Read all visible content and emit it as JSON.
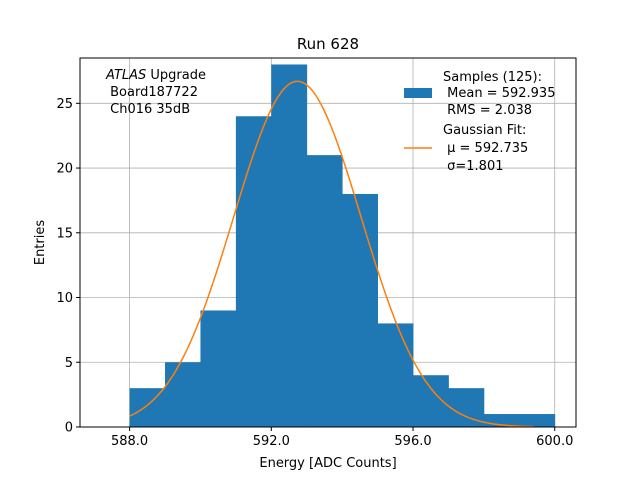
{
  "chart_data": {
    "type": "bar",
    "title": "Run 628",
    "xlabel": "Energy [ADC Counts]",
    "ylabel": "Entries",
    "xlim": [
      586.6,
      600.6
    ],
    "ylim": [
      0,
      28.5
    ],
    "x_ticks": [
      588.0,
      592.0,
      596.0,
      600.0
    ],
    "x_tick_labels": [
      "588.0",
      "592.0",
      "596.0",
      "600.0"
    ],
    "y_ticks": [
      0,
      5,
      10,
      15,
      20,
      25
    ],
    "y_tick_labels": [
      "0",
      "5",
      "10",
      "15",
      "20",
      "25"
    ],
    "grid": true,
    "bin_edges": [
      588,
      589,
      590,
      591,
      592,
      593,
      594,
      595,
      596,
      597,
      598,
      599,
      600
    ],
    "counts": [
      3,
      5,
      9,
      24,
      28,
      21,
      18,
      8,
      4,
      3,
      1,
      1
    ],
    "gaussian_fit": {
      "mu": 592.735,
      "sigma": 1.801,
      "amplitude": 26.7,
      "x_range": [
        588,
        599.4
      ]
    },
    "legend_position": "top-right",
    "series": [
      {
        "name": "Samples (125):",
        "label_lines": [
          "Samples (125):",
          " Mean = 592.935",
          " RMS = 2.038"
        ],
        "color": "#1f77b4"
      },
      {
        "name": "Gaussian Fit:",
        "label_lines": [
          "Gaussian Fit:",
          " μ = 592.735",
          " σ=1.801"
        ],
        "color": "#ff7f0e"
      }
    ],
    "annotation": {
      "italic": "ATLAS",
      "line1_rest": " Upgrade",
      "line2": " Board187722",
      "line3": " Ch016 35dB"
    }
  },
  "colors": {
    "grid": "#b0b0b0",
    "axes": "#000000",
    "bar": "#1f77b4",
    "fit": "#ff7f0e"
  }
}
